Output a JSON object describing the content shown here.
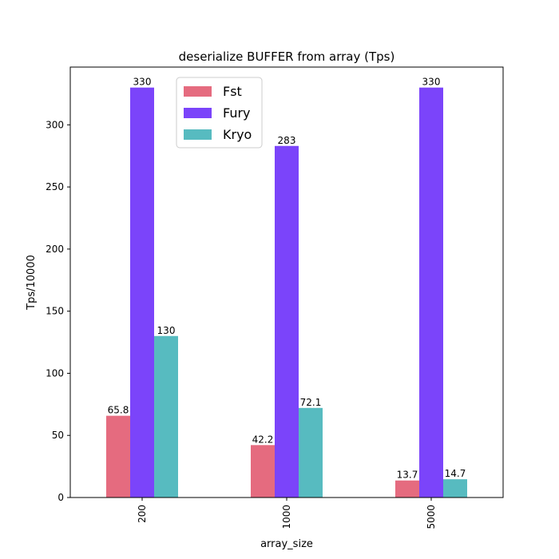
{
  "chart_data": {
    "type": "bar",
    "title": "deserialize BUFFER from array (Tps)",
    "xlabel": "array_size",
    "ylabel": "Tps/10000",
    "categories": [
      "200",
      "1000",
      "5000"
    ],
    "series": [
      {
        "name": "Fst",
        "color": "#e56b7f",
        "values": [
          65.8,
          42.2,
          13.7
        ],
        "labels": [
          "65.8",
          "42.2",
          "13.7"
        ]
      },
      {
        "name": "Fury",
        "color": "#7b44fa",
        "values": [
          330,
          283,
          330
        ],
        "labels": [
          "330",
          "283",
          "330"
        ]
      },
      {
        "name": "Kryo",
        "color": "#57bbc0",
        "values": [
          130,
          72.1,
          14.7
        ],
        "labels": [
          "130",
          "72.1",
          "14.7"
        ]
      }
    ],
    "ylim": [
      0,
      346.5
    ],
    "yticks": [
      0,
      50,
      100,
      150,
      200,
      250,
      300
    ],
    "grid": false,
    "legend_position": "top-center"
  }
}
